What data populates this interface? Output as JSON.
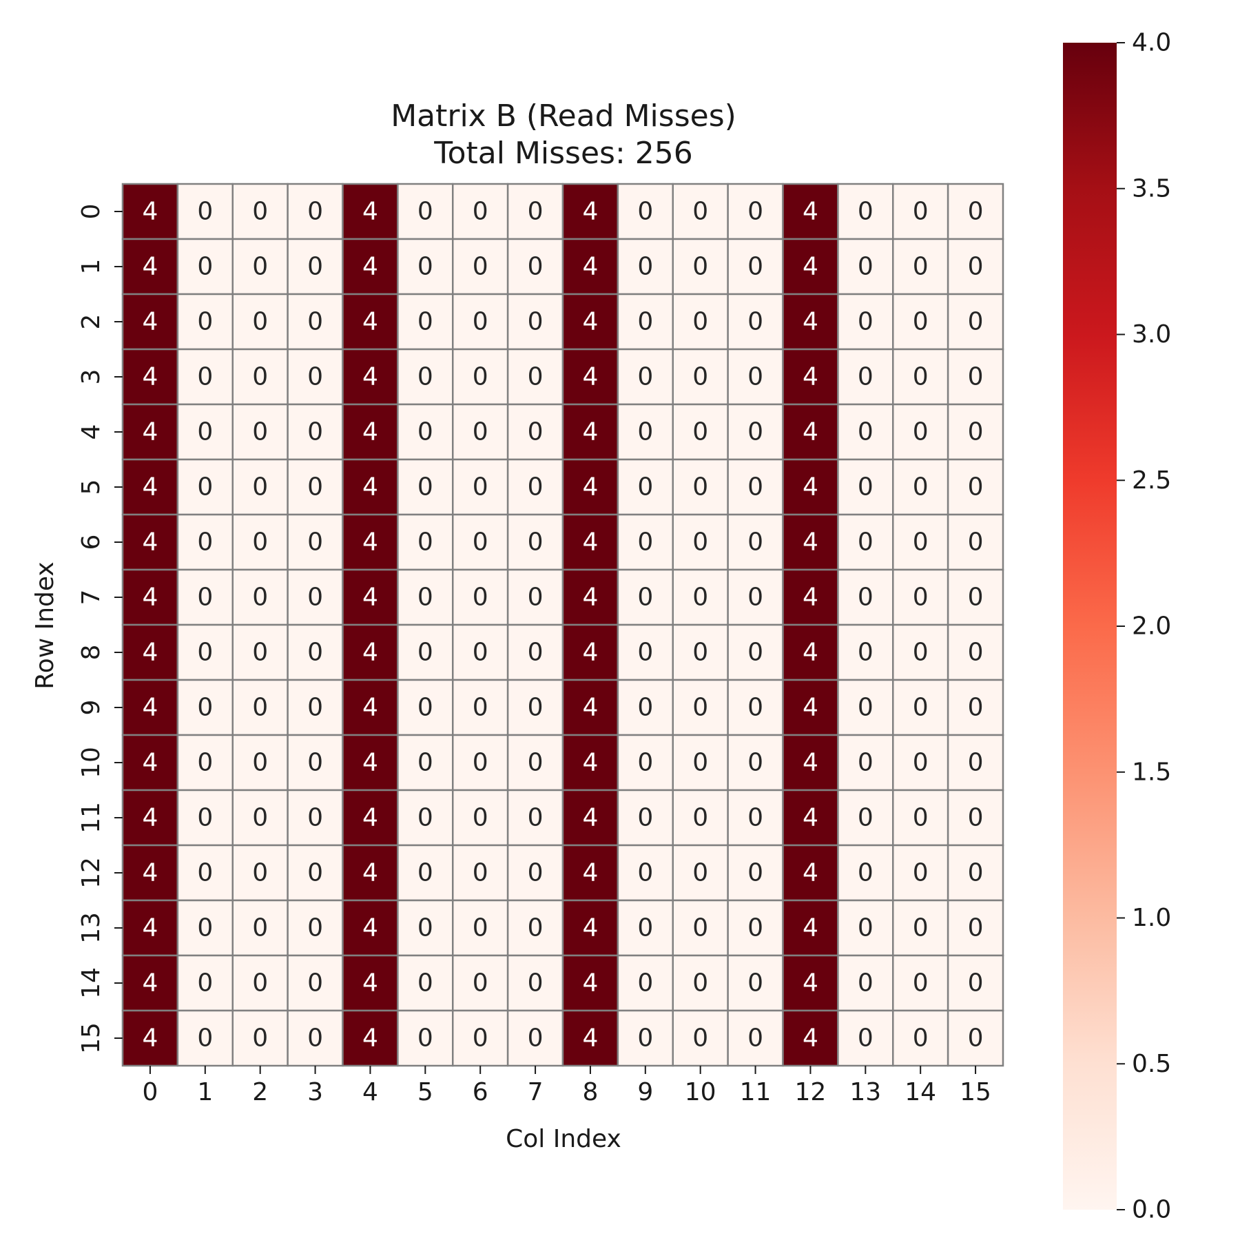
{
  "chart_data": {
    "type": "heatmap",
    "title": "Matrix B (Read Misses)",
    "subtitle": "Total Misses: 256",
    "xlabel": "Col Index",
    "ylabel": "Row Index",
    "x_categories": [
      "0",
      "1",
      "2",
      "3",
      "4",
      "5",
      "6",
      "7",
      "8",
      "9",
      "10",
      "11",
      "12",
      "13",
      "14",
      "15"
    ],
    "y_categories": [
      "0",
      "1",
      "2",
      "3",
      "4",
      "5",
      "6",
      "7",
      "8",
      "9",
      "10",
      "11",
      "12",
      "13",
      "14",
      "15"
    ],
    "values": [
      [
        4,
        0,
        0,
        0,
        4,
        0,
        0,
        0,
        4,
        0,
        0,
        0,
        4,
        0,
        0,
        0
      ],
      [
        4,
        0,
        0,
        0,
        4,
        0,
        0,
        0,
        4,
        0,
        0,
        0,
        4,
        0,
        0,
        0
      ],
      [
        4,
        0,
        0,
        0,
        4,
        0,
        0,
        0,
        4,
        0,
        0,
        0,
        4,
        0,
        0,
        0
      ],
      [
        4,
        0,
        0,
        0,
        4,
        0,
        0,
        0,
        4,
        0,
        0,
        0,
        4,
        0,
        0,
        0
      ],
      [
        4,
        0,
        0,
        0,
        4,
        0,
        0,
        0,
        4,
        0,
        0,
        0,
        4,
        0,
        0,
        0
      ],
      [
        4,
        0,
        0,
        0,
        4,
        0,
        0,
        0,
        4,
        0,
        0,
        0,
        4,
        0,
        0,
        0
      ],
      [
        4,
        0,
        0,
        0,
        4,
        0,
        0,
        0,
        4,
        0,
        0,
        0,
        4,
        0,
        0,
        0
      ],
      [
        4,
        0,
        0,
        0,
        4,
        0,
        0,
        0,
        4,
        0,
        0,
        0,
        4,
        0,
        0,
        0
      ],
      [
        4,
        0,
        0,
        0,
        4,
        0,
        0,
        0,
        4,
        0,
        0,
        0,
        4,
        0,
        0,
        0
      ],
      [
        4,
        0,
        0,
        0,
        4,
        0,
        0,
        0,
        4,
        0,
        0,
        0,
        4,
        0,
        0,
        0
      ],
      [
        4,
        0,
        0,
        0,
        4,
        0,
        0,
        0,
        4,
        0,
        0,
        0,
        4,
        0,
        0,
        0
      ],
      [
        4,
        0,
        0,
        0,
        4,
        0,
        0,
        0,
        4,
        0,
        0,
        0,
        4,
        0,
        0,
        0
      ],
      [
        4,
        0,
        0,
        0,
        4,
        0,
        0,
        0,
        4,
        0,
        0,
        0,
        4,
        0,
        0,
        0
      ],
      [
        4,
        0,
        0,
        0,
        4,
        0,
        0,
        0,
        4,
        0,
        0,
        0,
        4,
        0,
        0,
        0
      ],
      [
        4,
        0,
        0,
        0,
        4,
        0,
        0,
        0,
        4,
        0,
        0,
        0,
        4,
        0,
        0,
        0
      ],
      [
        4,
        0,
        0,
        0,
        4,
        0,
        0,
        0,
        4,
        0,
        0,
        0,
        4,
        0,
        0,
        0
      ]
    ],
    "colorbar": {
      "range": [
        0,
        4
      ],
      "ticks": [
        0,
        0.5,
        1,
        1.5,
        2,
        2.5,
        3,
        3.5,
        4
      ],
      "tick_labels": [
        "0.0",
        "0.5",
        "1.0",
        "1.5",
        "2.0",
        "2.5",
        "3.0",
        "3.5",
        "4.0"
      ]
    },
    "colormap": "Reds",
    "colors": {
      "low": "#fff5f0",
      "high": "#67000d",
      "cell_border": "#808080",
      "text_dark": "#262626",
      "text_light": "#ffffff"
    }
  }
}
